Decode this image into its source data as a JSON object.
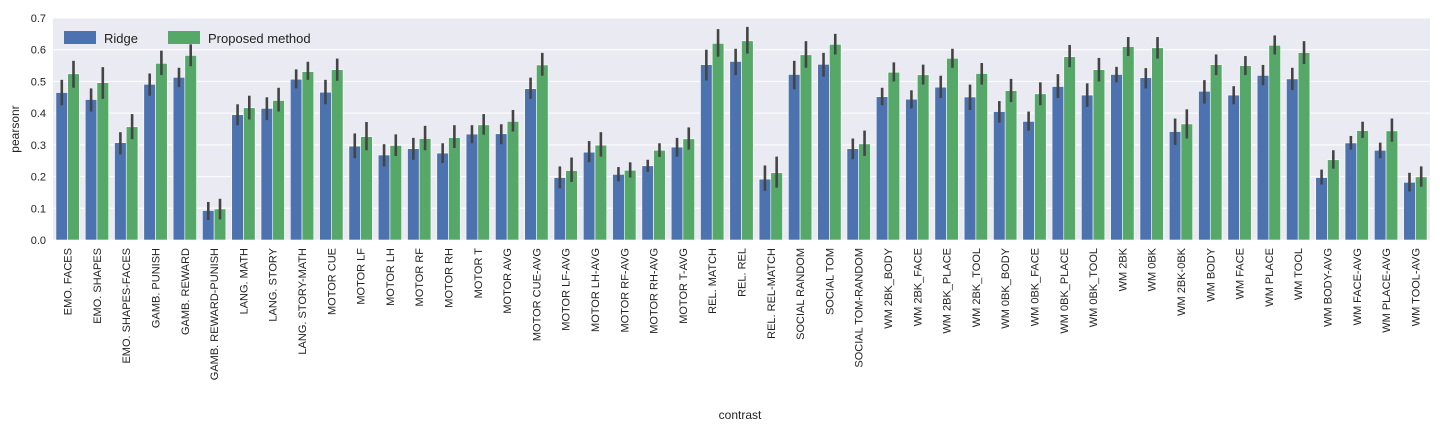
{
  "chart_data": {
    "type": "bar",
    "xlabel": "contrast",
    "ylabel": "pearsonr",
    "ylim": [
      0,
      0.7
    ],
    "yticks": [
      "0.0",
      "0.1",
      "0.2",
      "0.3",
      "0.4",
      "0.5",
      "0.6",
      "0.7"
    ],
    "grid": true,
    "legend_position": "top-left",
    "categories": [
      "EMO. FACES",
      "EMO. SHAPES",
      "EMO. SHAPES-FACES",
      "GAMB. PUNISH",
      "GAMB. REWARD",
      "GAMB. REWARD-PUNISH",
      "LANG. MATH",
      "LANG. STORY",
      "LANG. STORY-MATH",
      "MOTOR CUE",
      "MOTOR LF",
      "MOTOR LH",
      "MOTOR RF",
      "MOTOR RH",
      "MOTOR T",
      "MOTOR AVG",
      "MOTOR CUE-AVG",
      "MOTOR LF-AVG",
      "MOTOR LH-AVG",
      "MOTOR RF-AVG",
      "MOTOR RH-AVG",
      "MOTOR T-AVG",
      "REL. MATCH",
      "REL. REL",
      "REL. REL-MATCH",
      "SOCIAL RANDOM",
      "SOCIAL TOM",
      "SOCIAL TOM-RANDOM",
      "WM 2BK_BODY",
      "WM 2BK_FACE",
      "WM 2BK_PLACE",
      "WM 2BK_TOOL",
      "WM 0BK_BODY",
      "WM 0BK_FACE",
      "WM 0BK_PLACE",
      "WM 0BK_TOOL",
      "WM 2BK",
      "WM 0BK",
      "WM 2BK-0BK",
      "WM BODY",
      "WM FACE",
      "WM PLACE",
      "WM TOOL",
      "WM BODY-AVG",
      "WM FACE-AVG",
      "WM PLACE-AVG",
      "WM TOOL-AVG"
    ],
    "series": [
      {
        "name": "Ridge",
        "color": "#4c72b0",
        "values": [
          0.465,
          0.443,
          0.307,
          0.491,
          0.513,
          0.093,
          0.395,
          0.415,
          0.507,
          0.466,
          0.296,
          0.268,
          0.288,
          0.274,
          0.334,
          0.335,
          0.477,
          0.197,
          0.277,
          0.207,
          0.234,
          0.293,
          0.553,
          0.563,
          0.192,
          0.522,
          0.554,
          0.288,
          0.452,
          0.444,
          0.482,
          0.451,
          0.405,
          0.374,
          0.484,
          0.457,
          0.522,
          0.512,
          0.342,
          0.469,
          0.457,
          0.519,
          0.508,
          0.197,
          0.306,
          0.283,
          0.182
        ],
        "err_low": [
          0.425,
          0.405,
          0.27,
          0.455,
          0.482,
          0.063,
          0.362,
          0.378,
          0.478,
          0.428,
          0.258,
          0.232,
          0.253,
          0.243,
          0.305,
          0.302,
          0.445,
          0.163,
          0.245,
          0.185,
          0.215,
          0.263,
          0.503,
          0.52,
          0.155,
          0.475,
          0.515,
          0.255,
          0.425,
          0.415,
          0.448,
          0.41,
          0.37,
          0.345,
          0.448,
          0.42,
          0.497,
          0.478,
          0.3,
          0.43,
          0.428,
          0.488,
          0.473,
          0.175,
          0.285,
          0.258,
          0.153
        ],
        "err_high": [
          0.505,
          0.478,
          0.34,
          0.525,
          0.543,
          0.12,
          0.428,
          0.45,
          0.538,
          0.505,
          0.336,
          0.302,
          0.322,
          0.305,
          0.362,
          0.365,
          0.512,
          0.232,
          0.312,
          0.23,
          0.253,
          0.322,
          0.6,
          0.603,
          0.235,
          0.565,
          0.59,
          0.32,
          0.48,
          0.472,
          0.518,
          0.49,
          0.438,
          0.405,
          0.523,
          0.494,
          0.546,
          0.542,
          0.383,
          0.504,
          0.485,
          0.552,
          0.543,
          0.222,
          0.328,
          0.307,
          0.212
        ]
      },
      {
        "name": "Proposed method",
        "color": "#55a868",
        "values": [
          0.524,
          0.496,
          0.357,
          0.557,
          0.582,
          0.098,
          0.417,
          0.44,
          0.531,
          0.537,
          0.326,
          0.298,
          0.32,
          0.323,
          0.363,
          0.374,
          0.552,
          0.219,
          0.299,
          0.22,
          0.283,
          0.319,
          0.62,
          0.628,
          0.212,
          0.584,
          0.617,
          0.303,
          0.529,
          0.521,
          0.573,
          0.525,
          0.471,
          0.461,
          0.578,
          0.537,
          0.61,
          0.606,
          0.366,
          0.553,
          0.55,
          0.614,
          0.591,
          0.253,
          0.345,
          0.344,
          0.199
        ],
        "err_low": [
          0.48,
          0.445,
          0.318,
          0.52,
          0.548,
          0.065,
          0.38,
          0.405,
          0.505,
          0.502,
          0.283,
          0.265,
          0.283,
          0.29,
          0.332,
          0.342,
          0.518,
          0.183,
          0.263,
          0.197,
          0.262,
          0.285,
          0.578,
          0.588,
          0.165,
          0.543,
          0.585,
          0.265,
          0.5,
          0.49,
          0.543,
          0.49,
          0.435,
          0.425,
          0.545,
          0.5,
          0.58,
          0.572,
          0.32,
          0.52,
          0.52,
          0.585,
          0.555,
          0.225,
          0.322,
          0.31,
          0.168
        ],
        "err_high": [
          0.565,
          0.545,
          0.397,
          0.597,
          0.617,
          0.13,
          0.455,
          0.48,
          0.562,
          0.572,
          0.372,
          0.333,
          0.36,
          0.362,
          0.397,
          0.41,
          0.59,
          0.26,
          0.34,
          0.245,
          0.305,
          0.355,
          0.665,
          0.672,
          0.263,
          0.627,
          0.65,
          0.345,
          0.56,
          0.553,
          0.603,
          0.558,
          0.508,
          0.497,
          0.615,
          0.574,
          0.64,
          0.64,
          0.412,
          0.585,
          0.58,
          0.645,
          0.627,
          0.283,
          0.373,
          0.383,
          0.232
        ]
      }
    ]
  }
}
